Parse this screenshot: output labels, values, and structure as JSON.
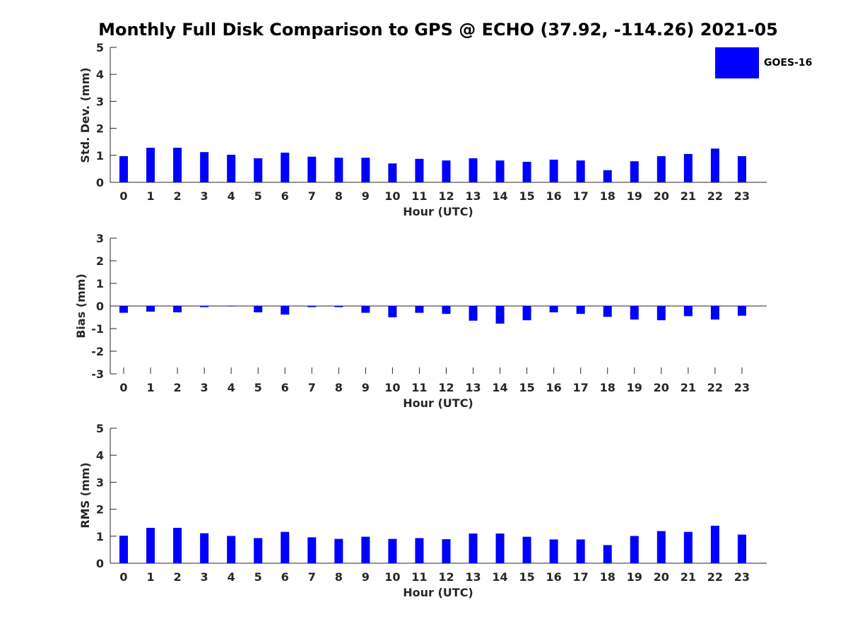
{
  "title": "Monthly Full Disk Comparison to GPS @ ECHO (37.92, -114.26) 2021-05",
  "legend": {
    "label": "GOES-16",
    "color": "#0000ff"
  },
  "chart_data": [
    {
      "type": "bar",
      "categories": [
        "0",
        "1",
        "2",
        "3",
        "4",
        "5",
        "6",
        "7",
        "8",
        "9",
        "10",
        "11",
        "12",
        "13",
        "14",
        "15",
        "16",
        "17",
        "18",
        "19",
        "20",
        "21",
        "22",
        "23"
      ],
      "series": [
        {
          "name": "GOES-16",
          "values": [
            0.97,
            1.28,
            1.28,
            1.12,
            1.02,
            0.89,
            1.1,
            0.95,
            0.91,
            0.91,
            0.7,
            0.87,
            0.81,
            0.89,
            0.81,
            0.76,
            0.84,
            0.81,
            0.45,
            0.78,
            0.97,
            1.05,
            1.25,
            0.97
          ]
        }
      ],
      "xlabel": "Hour (UTC)",
      "ylabel": "Std. Dev. (mm)",
      "ylim": [
        0,
        5
      ],
      "yticks": [
        "0",
        "1",
        "2",
        "3",
        "4",
        "5"
      ],
      "grid": false
    },
    {
      "type": "bar",
      "categories": [
        "0",
        "1",
        "2",
        "3",
        "4",
        "5",
        "6",
        "7",
        "8",
        "9",
        "10",
        "11",
        "12",
        "13",
        "14",
        "15",
        "16",
        "17",
        "18",
        "19",
        "20",
        "21",
        "22",
        "23"
      ],
      "series": [
        {
          "name": "GOES-16",
          "values": [
            -0.3,
            -0.25,
            -0.28,
            -0.05,
            -0.02,
            -0.28,
            -0.38,
            -0.05,
            -0.05,
            -0.3,
            -0.5,
            -0.3,
            -0.35,
            -0.65,
            -0.78,
            -0.63,
            -0.28,
            -0.35,
            -0.48,
            -0.6,
            -0.63,
            -0.45,
            -0.6,
            -0.43
          ]
        }
      ],
      "xlabel": "Hour (UTC)",
      "ylabel": "Bias (mm)",
      "ylim": [
        -3,
        3
      ],
      "yticks": [
        "-3",
        "-2",
        "-1",
        "0",
        "1",
        "2",
        "3"
      ],
      "grid": false
    },
    {
      "type": "bar",
      "categories": [
        "0",
        "1",
        "2",
        "3",
        "4",
        "5",
        "6",
        "7",
        "8",
        "9",
        "10",
        "11",
        "12",
        "13",
        "14",
        "15",
        "16",
        "17",
        "18",
        "19",
        "20",
        "21",
        "22",
        "23"
      ],
      "series": [
        {
          "name": "GOES-16",
          "values": [
            1.02,
            1.31,
            1.31,
            1.11,
            1.01,
            0.93,
            1.16,
            0.96,
            0.9,
            0.98,
            0.9,
            0.93,
            0.89,
            1.1,
            1.1,
            0.98,
            0.88,
            0.88,
            0.67,
            1.01,
            1.19,
            1.16,
            1.39,
            1.06
          ]
        }
      ],
      "xlabel": "Hour (UTC)",
      "ylabel": "RMS (mm)",
      "ylim": [
        0,
        5
      ],
      "yticks": [
        "0",
        "1",
        "2",
        "3",
        "4",
        "5"
      ],
      "grid": false
    }
  ]
}
